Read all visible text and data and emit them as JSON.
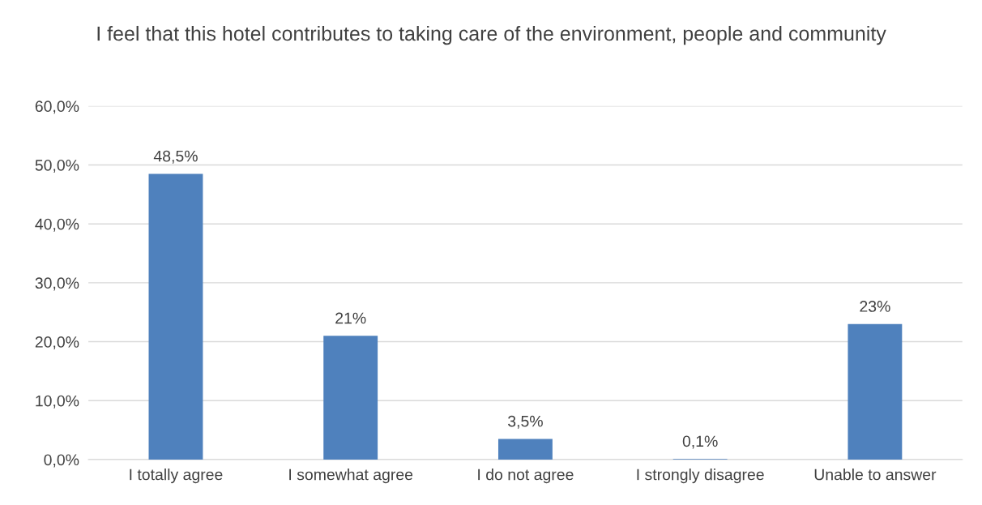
{
  "chart_data": {
    "type": "bar",
    "title": "I feel that this hotel contributes to taking care of the environment, people and community",
    "categories": [
      "I totally agree",
      "I somewhat agree",
      "I do not agree",
      "I strongly disagree",
      "Unable to answer"
    ],
    "values": [
      48.5,
      21,
      3.5,
      0.1,
      23
    ],
    "value_labels": [
      "48,5%",
      "21%",
      "3,5%",
      "0,1%",
      "23%"
    ],
    "color": "#4f81bd",
    "ylim": [
      0,
      60
    ],
    "yticks": [
      {
        "value": 0,
        "label": "0,0%"
      },
      {
        "value": 10,
        "label": "10,0%"
      },
      {
        "value": 20,
        "label": "20,0%"
      },
      {
        "value": 30,
        "label": "30,0%"
      },
      {
        "value": 40,
        "label": "40,0%"
      },
      {
        "value": 50,
        "label": "50,0%"
      },
      {
        "value": 60,
        "label": "60,0%"
      }
    ],
    "grid": "y"
  }
}
